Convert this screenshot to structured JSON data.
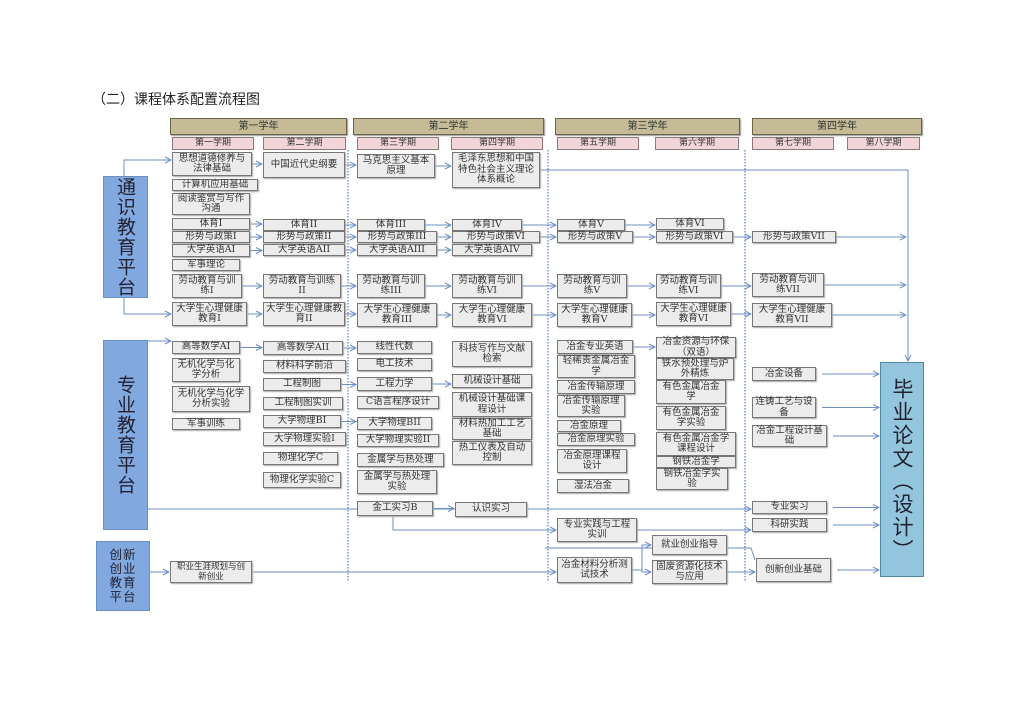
{
  "title": "（二）课程体系配置流程图",
  "years": [
    "第一学年",
    "第二学年",
    "第三学年",
    "第四学年"
  ],
  "semesters": [
    "第一学期",
    "第二学期",
    "第三学期",
    "第四学期",
    "第五学期",
    "第六学期",
    "第七学期",
    "第八学期"
  ],
  "platforms": {
    "general": "通识教育平台",
    "major": "专业教育平台",
    "innovation": "创新创业教育平台",
    "graduation": "毕业论文（设计）"
  },
  "colors": {
    "year_header": "#c5bb97",
    "semester_label": "#f2d5d8",
    "course_box": "#ececec",
    "platform": "#82a9df",
    "graduation": "#93c6dc",
    "arrow": "#6d8fc7"
  },
  "courses": {
    "c1": "思想道德修养与法律基础",
    "c2": "计算机应用基础",
    "c3": "阅读鉴赏与写作沟通",
    "c4": "体育I",
    "c5": "形势与政策I",
    "c6": "大学英语AI",
    "c7": "军事理论",
    "c8": "劳动教育与训练I",
    "c9": "大学生心理健康教育I",
    "d1": "中国近代史纲要",
    "d2": "体育II",
    "d3": "形势与政策II",
    "d4": "大学英语AII",
    "d5": "劳动教育与训练II",
    "d6": "大学生心理健康教育II",
    "e1": "马克思主义基本原理",
    "e2": "体育III",
    "e3": "形势与政策III",
    "e4": "大学英语AIII",
    "e5": "劳动教育与训练III",
    "e6": "大学生心理健康教育III",
    "f1": "毛泽东思想和中国特色社会主义理论体系概论",
    "f2": "体育IV",
    "f3": "形势与政策VI",
    "f4": "大学英语AIV",
    "f5": "劳动教育与训练VI",
    "f6": "大学生心理健康教育VI",
    "g1": "体育V",
    "g2": "形势与政策V",
    "g3": "劳动教育与训练V",
    "g4": "大学生心理健康教育V",
    "h1": "体育VI",
    "h2": "形势与政策VI",
    "h3": "劳动教育与训练VI",
    "h4": "大学生心理健康教育VI",
    "i1": "形势与政策VII",
    "i2": "劳动教育与训练VII",
    "i3": "大学生心理健康教育VII",
    "m1": "高等数学AI",
    "m2": "无机化学与化学分析",
    "m3": "无机化学与化学分析实验",
    "m4": "军事训练",
    "n1": "高等数学AII",
    "n2": "材料科学前沿",
    "n3": "工程制图",
    "n4": "工程制图实训",
    "n5": "大学物理BI",
    "n6": "大学物理实验I",
    "n7": "物理化学C",
    "n8": "物理化学实验C",
    "o1": "线性代数",
    "o2": "电工技术",
    "o3": "工程力学",
    "o4": "C语言程序设计",
    "o5": "大学物理BII",
    "o6": "大学物理实验II",
    "o7": "金属学与热处理",
    "o8": "金属学与热处理实验",
    "o9": "金工实习B",
    "p1": "科技写作与文献检索",
    "p2": "机械设计基础",
    "p3": "机械设计基础课程设计",
    "p4": "材料热加工工艺基础",
    "p5": "热工仪表及自动控制",
    "p6": "认识实习",
    "q1": "冶金专业英语",
    "q2": "轻稀贵金属冶金学",
    "q3": "冶金传输原理",
    "q4": "冶金传输原理实验",
    "q5": "冶金原理",
    "q6": "冶金原理实验",
    "q7": "冶金原理课程设计",
    "q8": "湿法冶金",
    "q9": "专业实践与工程实训",
    "q10": "冶金材料分析测试技术",
    "r1": "冶金资源与环保（双语）",
    "r2": "铁水预处理与炉外精炼",
    "r3": "有色金属冶金学",
    "r4": "有色金属冶金学实验",
    "r5": "有色金属冶金学课程设计",
    "r6": "钢铁冶金学",
    "r7": "钢铁冶金学实验",
    "r8": "就业创业指导",
    "r9": "固废资源化技术与应用",
    "s1": "冶金设备",
    "s2": "连铸工艺与设备",
    "s3": "冶金工程设计基础",
    "s4": "专业实习",
    "s5": "科研实践",
    "s6": "创新创业基础",
    "x1": "职业生涯规划与创新创业"
  }
}
